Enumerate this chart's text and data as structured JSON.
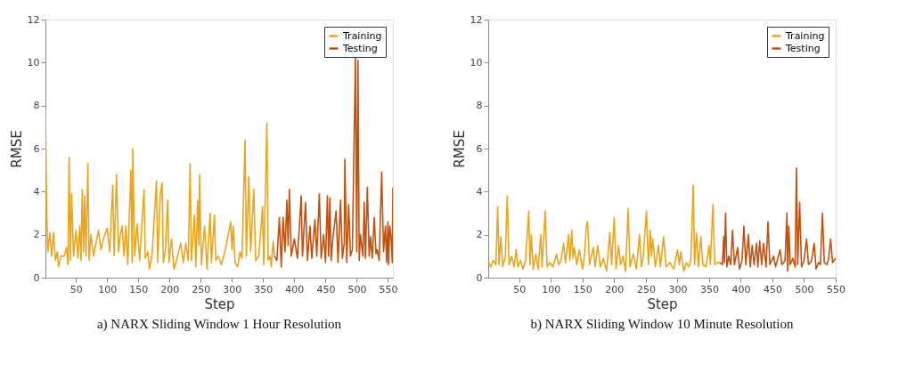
{
  "chart_data": [
    {
      "type": "line",
      "title": "a) NARX Sliding Window 1 Hour Resolution",
      "xlabel": "Step",
      "ylabel": "RMSE",
      "xlim": [
        1,
        558
      ],
      "ylim": [
        0,
        12
      ],
      "xticks": [
        50,
        100,
        150,
        200,
        250,
        300,
        350,
        400,
        450,
        500,
        550
      ],
      "yticks": [
        0,
        2,
        4,
        6,
        8,
        10,
        12
      ],
      "grid": false,
      "legend": "top right",
      "line_style": "solid",
      "marker": "none",
      "series": [
        {
          "name": "Training",
          "color": "#eba51c",
          "x": [
            1,
            3,
            5,
            8,
            11,
            14,
            17,
            20,
            22,
            26,
            31,
            35,
            37,
            39,
            41,
            43,
            46,
            50,
            53,
            56,
            58,
            60,
            62,
            64,
            66,
            69,
            71,
            74,
            78,
            82,
            86,
            90,
            95,
            100,
            104,
            109,
            111,
            115,
            118,
            121,
            124,
            127,
            130,
            133,
            136,
            138,
            140,
            141,
            144,
            148,
            152,
            159,
            161,
            165,
            168,
            172,
            179,
            181,
            185,
            188,
            190,
            193,
            197,
            199,
            203,
            207,
            212,
            218,
            222,
            226,
            230,
            233,
            235,
            240,
            242,
            245,
            247,
            248,
            251,
            256,
            260,
            265,
            267,
            272,
            274,
            278,
            283,
            290,
            294,
            298,
            300,
            302,
            305,
            309,
            313,
            316,
            321,
            323,
            327,
            330,
            335,
            338,
            343,
            349,
            351,
            356,
            358,
            361,
            363,
            366,
            368
          ],
          "values": [
            7.8,
            3.0,
            1.2,
            2.1,
            1.0,
            2.1,
            0.8,
            1.2,
            0.5,
            1.0,
            1.0,
            1.4,
            0.6,
            5.6,
            0.8,
            3.9,
            1.0,
            2.2,
            0.9,
            2.4,
            0.8,
            4.1,
            1.2,
            3.8,
            1.0,
            5.3,
            0.8,
            2.0,
            1.0,
            1.6,
            2.2,
            1.3,
            1.9,
            2.3,
            1.2,
            4.3,
            1.0,
            4.8,
            1.2,
            2.0,
            2.4,
            1.0,
            2.4,
            0.6,
            3.4,
            5.0,
            0.7,
            6.0,
            1.0,
            2.5,
            0.8,
            4.1,
            0.9,
            1.2,
            0.4,
            1.1,
            4.5,
            0.7,
            3.8,
            4.4,
            0.7,
            1.2,
            3.6,
            0.7,
            1.8,
            0.4,
            0.9,
            1.6,
            0.7,
            1.6,
            0.8,
            5.3,
            0.8,
            2.9,
            0.5,
            3.6,
            1.5,
            4.8,
            0.6,
            2.4,
            0.4,
            3.0,
            0.7,
            2.9,
            0.8,
            1.0,
            0.6,
            1.4,
            2.0,
            2.6,
            1.3,
            2.4,
            0.7,
            0.5,
            1.2,
            0.9,
            6.4,
            1.0,
            4.7,
            1.2,
            4.1,
            0.8,
            1.0,
            3.3,
            0.6,
            7.2,
            0.8,
            1.0,
            0.5,
            1.7,
            1.0
          ]
        },
        {
          "name": "Testing",
          "color": "#c2500f",
          "x": [
            368,
            372,
            376,
            379,
            382,
            385,
            388,
            390,
            392,
            395,
            400,
            405,
            411,
            413,
            418,
            421,
            425,
            428,
            433,
            436,
            440,
            443,
            447,
            450,
            453,
            455,
            457,
            459,
            462,
            467,
            470,
            474,
            477,
            480,
            481,
            484,
            487,
            490,
            493,
            498,
            500,
            502,
            504,
            506,
            510,
            512,
            514,
            517,
            520,
            522,
            525,
            528,
            531,
            533,
            536,
            540,
            543,
            546,
            548,
            550,
            551,
            553,
            555,
            557,
            558
          ],
          "values": [
            1.0,
            0.8,
            2.8,
            0.5,
            2.8,
            1.2,
            3.6,
            1.5,
            4.1,
            1.0,
            1.8,
            0.9,
            3.8,
            1.0,
            3.5,
            0.8,
            2.4,
            0.9,
            2.7,
            1.0,
            3.9,
            0.9,
            2.0,
            0.7,
            3.8,
            1.0,
            3.7,
            0.8,
            1.9,
            3.1,
            0.7,
            3.6,
            0.9,
            1.6,
            5.5,
            0.7,
            3.4,
            1.0,
            1.3,
            10.3,
            1.2,
            10.1,
            0.8,
            2.0,
            1.0,
            3.5,
            0.9,
            4.2,
            1.0,
            1.9,
            0.9,
            2.8,
            1.1,
            1.3,
            0.8,
            4.9,
            1.2,
            2.4,
            0.7,
            2.6,
            0.6,
            2.4,
            1.9,
            0.7,
            4.2
          ]
        }
      ]
    },
    {
      "type": "line",
      "title": "b) NARX Sliding Window 10 Minute Resolution",
      "xlabel": "Step",
      "ylabel": "RMSE",
      "xlim": [
        1,
        550
      ],
      "ylim": [
        0,
        12
      ],
      "xticks": [
        50,
        100,
        150,
        200,
        250,
        300,
        350,
        400,
        450,
        500,
        550
      ],
      "yticks": [
        0,
        2,
        4,
        6,
        8,
        10,
        12
      ],
      "grid": false,
      "legend": "top right",
      "line_style": "solid",
      "marker": "none",
      "series": [
        {
          "name": "Training",
          "color": "#eba51c",
          "x": [
            1,
            5,
            9,
            13,
            16,
            18,
            21,
            24,
            28,
            31,
            34,
            38,
            42,
            45,
            48,
            52,
            56,
            60,
            65,
            67,
            69,
            72,
            76,
            80,
            84,
            86,
            91,
            94,
            98,
            103,
            109,
            112,
            116,
            120,
            123,
            128,
            130,
            133,
            135,
            137,
            141,
            145,
            150,
            153,
            156,
            158,
            161,
            167,
            170,
            174,
            178,
            183,
            188,
            193,
            196,
            200,
            203,
            207,
            210,
            214,
            218,
            222,
            225,
            230,
            235,
            240,
            243,
            246,
            251,
            254,
            257,
            259,
            261,
            265,
            270,
            273,
            278,
            282,
            288,
            294,
            300,
            303,
            305,
            310,
            314,
            318,
            321,
            325,
            327,
            330,
            333,
            337,
            340,
            345,
            350,
            352,
            356,
            359,
            363,
            367
          ],
          "values": [
            0.8,
            0.5,
            0.8,
            0.6,
            3.3,
            0.6,
            1.9,
            0.5,
            1.0,
            3.8,
            0.6,
            1.0,
            0.5,
            1.3,
            0.5,
            0.8,
            0.4,
            0.8,
            3.1,
            0.6,
            2.0,
            0.4,
            1.1,
            0.4,
            2.0,
            0.5,
            3.1,
            0.5,
            0.7,
            0.5,
            1.1,
            0.6,
            0.8,
            1.6,
            0.7,
            2.0,
            0.8,
            2.2,
            0.9,
            1.4,
            0.6,
            1.3,
            0.4,
            1.0,
            2.4,
            2.6,
            0.6,
            1.4,
            0.5,
            1.5,
            0.5,
            0.9,
            0.3,
            2.1,
            0.6,
            2.8,
            0.4,
            1.5,
            0.6,
            1.0,
            0.3,
            3.2,
            0.5,
            1.1,
            0.4,
            2.0,
            0.5,
            1.0,
            3.1,
            0.6,
            2.2,
            1.0,
            1.8,
            0.5,
            1.5,
            0.5,
            1.9,
            0.5,
            0.7,
            0.4,
            1.3,
            0.6,
            1.2,
            0.3,
            0.7,
            0.5,
            0.8,
            4.3,
            0.6,
            2.1,
            0.5,
            1.9,
            0.6,
            0.5,
            1.5,
            0.6,
            3.4,
            0.6,
            0.7,
            0.7
          ]
        },
        {
          "name": "Testing",
          "color": "#c2500f",
          "x": [
            367,
            371,
            373,
            374,
            376,
            378,
            381,
            384,
            387,
            390,
            395,
            398,
            402,
            405,
            408,
            412,
            415,
            418,
            421,
            425,
            427,
            430,
            433,
            436,
            440,
            443,
            446,
            452,
            455,
            462,
            465,
            470,
            473,
            474,
            476,
            478,
            482,
            486,
            488,
            490,
            493,
            496,
            500,
            504,
            507,
            512,
            516,
            519,
            523,
            526,
            529,
            532,
            536,
            539,
            542,
            545,
            550
          ],
          "values": [
            0.7,
            0.6,
            1.9,
            0.7,
            3.0,
            0.5,
            1.0,
            0.6,
            2.2,
            0.6,
            1.4,
            0.4,
            0.8,
            2.4,
            0.6,
            2.0,
            0.5,
            1.5,
            0.6,
            1.6,
            0.5,
            1.7,
            0.6,
            1.6,
            0.5,
            2.6,
            0.6,
            1.0,
            0.5,
            1.3,
            0.6,
            0.8,
            3.0,
            0.3,
            2.4,
            0.6,
            0.9,
            0.5,
            5.1,
            0.6,
            3.5,
            0.5,
            0.8,
            1.8,
            0.6,
            0.8,
            1.6,
            0.4,
            0.7,
            0.6,
            3.0,
            0.7,
            0.6,
            0.9,
            1.8,
            0.7,
            0.9
          ]
        }
      ]
    }
  ]
}
